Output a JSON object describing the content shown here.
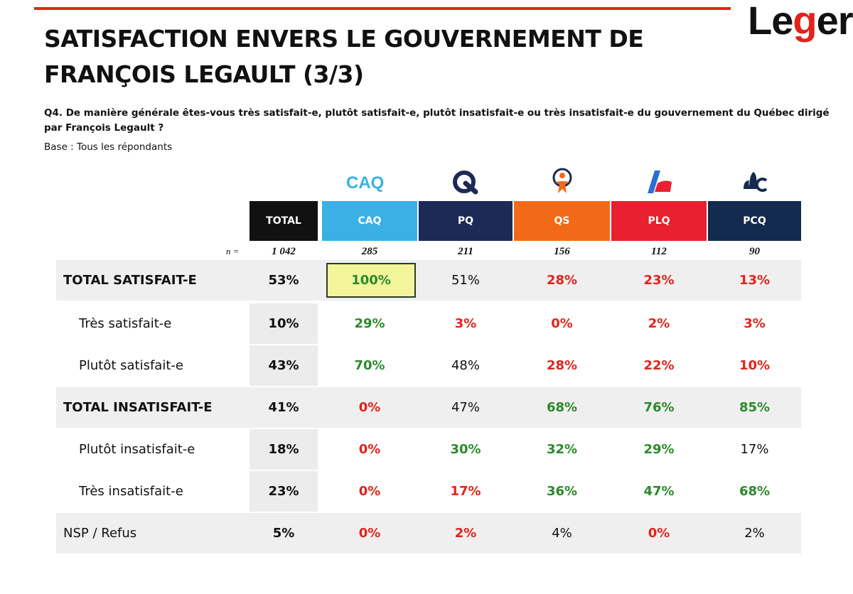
{
  "logo": {
    "text_pre": "Le",
    "text_g": "g",
    "text_post": "er"
  },
  "title": "SATISFACTION ENVERS LE GOUVERNEMENT DE FRANÇOIS LEGAULT (3/3)",
  "question": "Q4. De manière générale êtes-vous très satisfait-e, plutôt satisfait-e, plutôt insatisfait-e ou très insatisfait-e du gouvernement du Québec dirigé par François Legault ?",
  "base": "Base : Tous les répondants",
  "n_label": "n =",
  "logos": {
    "caq": "CAQ"
  },
  "columns": [
    {
      "label": "TOTAL",
      "n": "1 042",
      "color": "#111111"
    },
    {
      "label": "CAQ",
      "n": "285",
      "color": "#3bb0e4"
    },
    {
      "label": "PQ",
      "n": "211",
      "color": "#1d2a57"
    },
    {
      "label": "QS",
      "n": "156",
      "color": "#f26a18"
    },
    {
      "label": "PLQ",
      "n": "112",
      "color": "#e8202f"
    },
    {
      "label": "PCQ",
      "n": "90",
      "color": "#142b4f"
    }
  ],
  "rows": [
    {
      "label": "TOTAL SATISFAIT-E",
      "style": "bold",
      "shaded": true,
      "values": [
        "53%",
        "100%",
        "51%",
        "28%",
        "23%",
        "13%"
      ],
      "colors": [
        "b",
        "g",
        "k",
        "r",
        "r",
        "r"
      ]
    },
    {
      "label": "Très satisfait-e",
      "style": "sub",
      "shaded": false,
      "values": [
        "10%",
        "29%",
        "3%",
        "0%",
        "2%",
        "3%"
      ],
      "colors": [
        "b",
        "g",
        "r",
        "r",
        "r",
        "r"
      ]
    },
    {
      "label": "Plutôt satisfait-e",
      "style": "sub",
      "shaded": false,
      "values": [
        "43%",
        "70%",
        "48%",
        "28%",
        "22%",
        "10%"
      ],
      "colors": [
        "b",
        "g",
        "k",
        "r",
        "r",
        "r"
      ]
    },
    {
      "label": "TOTAL INSATISFAIT-E",
      "style": "bold",
      "shaded": true,
      "values": [
        "41%",
        "0%",
        "47%",
        "68%",
        "76%",
        "85%"
      ],
      "colors": [
        "b",
        "r",
        "k",
        "g",
        "g",
        "g"
      ]
    },
    {
      "label": "Plutôt insatisfait-e",
      "style": "sub",
      "shaded": false,
      "values": [
        "18%",
        "0%",
        "30%",
        "32%",
        "29%",
        "17%"
      ],
      "colors": [
        "b",
        "r",
        "g",
        "g",
        "g",
        "k"
      ]
    },
    {
      "label": "Très insatisfait-e",
      "style": "sub",
      "shaded": false,
      "values": [
        "23%",
        "0%",
        "17%",
        "36%",
        "47%",
        "68%"
      ],
      "colors": [
        "b",
        "r",
        "r",
        "g",
        "g",
        "g"
      ]
    },
    {
      "label": "NSP / Refus",
      "style": "plain",
      "shaded": true,
      "values": [
        "5%",
        "0%",
        "2%",
        "4%",
        "0%",
        "2%"
      ],
      "colors": [
        "b",
        "r",
        "r",
        "k",
        "r",
        "k"
      ]
    }
  ],
  "highlight": {
    "row": 0,
    "col": 1
  }
}
